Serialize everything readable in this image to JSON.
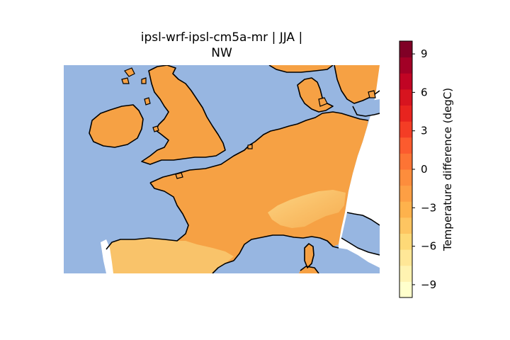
{
  "title": {
    "line1": "ipsl-wrf-ipsl-cm5a-mr | JJA |",
    "line2": "NW"
  },
  "colors": {
    "ocean": "#97b6e1",
    "land_main": "#f6a144",
    "land_light": "#f9c36a",
    "land_pale": "#fddc8c",
    "coast": "#000000"
  },
  "colorbar": {
    "label": "Temperature difference (degC)",
    "min": -10,
    "max": 10,
    "ticks": [
      {
        "value": 9,
        "label": "9"
      },
      {
        "value": 6,
        "label": "6"
      },
      {
        "value": 3,
        "label": "3"
      },
      {
        "value": 0,
        "label": "0"
      },
      {
        "value": -3,
        "label": "−3"
      },
      {
        "value": -6,
        "label": "−6"
      },
      {
        "value": -9,
        "label": "−9"
      }
    ],
    "colors": [
      "#ffffcc",
      "#fff3b1",
      "#ffe797",
      "#fed977",
      "#fec561",
      "#feb24c",
      "#fd9f44",
      "#fd8d3c",
      "#fd7434",
      "#fc5b2e",
      "#f43d25",
      "#e8241f",
      "#d7141f",
      "#c10424",
      "#a20026",
      "#800026"
    ]
  }
}
